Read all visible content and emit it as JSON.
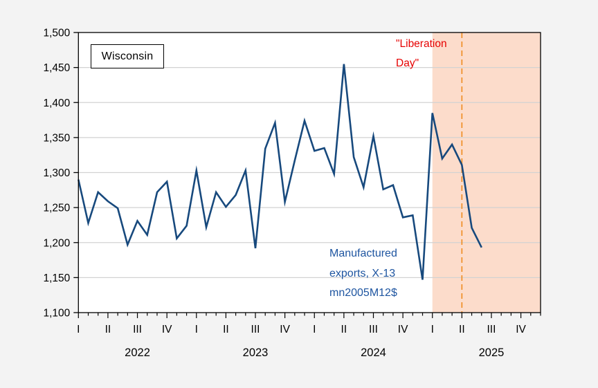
{
  "page": {
    "background": "#f3f3f3",
    "plot_background": "#ffffff"
  },
  "labels": {
    "state_box": "Wisconsin",
    "liberation_line1": "\"Liberation",
    "liberation_line2": "Day\"",
    "series_note_line1": "Manufactured",
    "series_note_line2": "exports, X-13",
    "series_note_line3": "mn2005M12$"
  },
  "colors": {
    "line": "#17497d",
    "series_note_text": "#1e55a0",
    "liberation_text": "#e60000",
    "shading": "#fcdccb",
    "vline": "#ef8a1d",
    "gridline": "#d2d2d2",
    "frame": "#000000",
    "tick_text": "#000000"
  },
  "chart_data": {
    "type": "line",
    "title": "Wisconsin",
    "x": [
      "2022-01",
      "2022-02",
      "2022-03",
      "2022-04",
      "2022-05",
      "2022-06",
      "2022-07",
      "2022-08",
      "2022-09",
      "2022-10",
      "2022-11",
      "2022-12",
      "2023-01",
      "2023-02",
      "2023-03",
      "2023-04",
      "2023-05",
      "2023-06",
      "2023-07",
      "2023-08",
      "2023-09",
      "2023-10",
      "2023-11",
      "2023-12",
      "2024-01",
      "2024-02",
      "2024-03",
      "2024-04",
      "2024-05",
      "2024-06",
      "2024-07",
      "2024-08",
      "2024-09",
      "2024-10",
      "2024-11",
      "2024-12",
      "2025-01",
      "2025-02",
      "2025-03",
      "2025-04",
      "2025-05",
      "2025-06"
    ],
    "series": [
      {
        "name": "Manufactured exports, X-13 mn2005M12$",
        "color": "#17497d",
        "values": [
          1290,
          1228,
          1272,
          1259,
          1249,
          1197,
          1231,
          1211,
          1272,
          1287,
          1206,
          1224,
          1303,
          1222,
          1272,
          1251,
          1268,
          1303,
          1192,
          1334,
          1371,
          1258,
          1317,
          1374,
          1331,
          1335,
          1298,
          1455,
          1322,
          1279,
          1352,
          1276,
          1282,
          1236,
          1239,
          1147,
          1385,
          1320,
          1340,
          1311,
          1221,
          1193
        ]
      }
    ],
    "y_axis": {
      "min": 1100,
      "max": 1500,
      "step": 50,
      "tick_labels": [
        "1,100",
        "1,150",
        "1,200",
        "1,250",
        "1,300",
        "1,350",
        "1,400",
        "1,450",
        "1,500"
      ]
    },
    "x_axis": {
      "quarter_labels": [
        "I",
        "II",
        "III",
        "IV"
      ],
      "year_labels": [
        "2022",
        "2023",
        "2024",
        "2025"
      ],
      "total_months": 48
    },
    "shading": {
      "from": "2025-01",
      "to": "end",
      "color": "#fcdccb"
    },
    "vline": {
      "at": "2025-04",
      "style": "dashed",
      "color": "#ef8a1d",
      "label": "\"Liberation Day\""
    },
    "grid": "horizontal",
    "legend": "none",
    "ylim": [
      1100,
      1500
    ]
  }
}
